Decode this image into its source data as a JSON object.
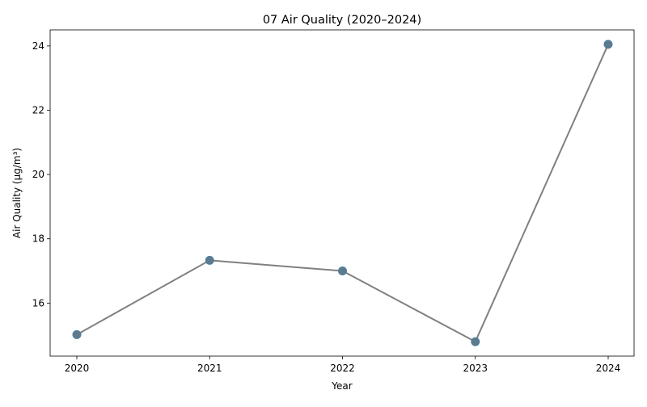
{
  "chart_data": {
    "type": "line",
    "title": "07 Air Quality (2020–2024)",
    "xlabel": "Year",
    "ylabel": "Air Quality (µg/m³)",
    "x": [
      "2020",
      "2021",
      "2022",
      "2023",
      "2024"
    ],
    "series": [
      {
        "values": [
          15.02,
          17.33,
          17.0,
          14.8,
          24.05
        ]
      }
    ],
    "ylim": [
      14.35,
      24.5
    ],
    "y_ticks": [
      "16",
      "18",
      "20",
      "22",
      "24"
    ],
    "grid": false,
    "line_color": "#808080",
    "marker_fill": "#5f7a8a",
    "marker_edge": "#4a80a8"
  }
}
